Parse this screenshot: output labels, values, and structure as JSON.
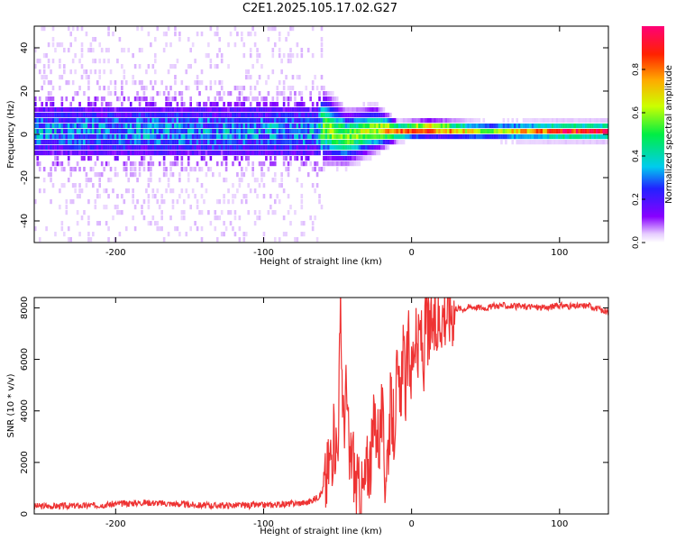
{
  "figure_title": "C2E1.2025.105.17.02.G27",
  "chart_data": [
    {
      "type": "heatmap",
      "title": "C2E1.2025.105.17.02.G27",
      "xlabel": "Height of straight line (km)",
      "ylabel": "Frequency (Hz)",
      "xlim": [
        -255,
        133
      ],
      "ylim": [
        -50,
        50
      ],
      "xticks": [
        -200,
        -100,
        0,
        100
      ],
      "yticks": [
        -40,
        -20,
        0,
        20,
        40
      ],
      "grid": false,
      "colorbar": {
        "label": "Normalized spectral amplitude",
        "range": [
          0.0,
          1.0
        ],
        "ticks": [
          0.0,
          0.2,
          0.4,
          0.6,
          0.8
        ],
        "colormap": "rainbow (violet to red)"
      },
      "description_points": [
        {
          "x": -255,
          "center_freq": 0,
          "spread_hz": 50,
          "peak_amp": 0.3
        },
        {
          "x": -65,
          "center_freq": 0,
          "spread_hz": 50,
          "peak_amp": 0.3
        },
        {
          "x": -60,
          "center_freq": 2,
          "spread_hz": 8,
          "peak_amp": 0.6
        },
        {
          "x": -45,
          "center_freq": -3,
          "spread_hz": 6,
          "peak_amp": 0.6
        },
        {
          "x": -25,
          "center_freq": 1,
          "spread_hz": 5,
          "peak_amp": 0.65
        },
        {
          "x": -10,
          "center_freq": 0,
          "spread_hz": 2,
          "peak_amp": 0.9
        },
        {
          "x": 10,
          "center_freq": 1,
          "spread_hz": 2,
          "peak_amp": 0.95
        },
        {
          "x": 50,
          "center_freq": 0,
          "spread_hz": 2,
          "peak_amp": 0.6
        },
        {
          "x": 100,
          "center_freq": 0,
          "spread_hz": 2,
          "peak_amp": 0.95
        },
        {
          "x": 133,
          "center_freq": 0,
          "spread_hz": 2,
          "peak_amp": 0.95
        }
      ]
    },
    {
      "type": "line",
      "title": "",
      "xlabel": "Height of straight line (km)",
      "ylabel": "SNR (10 * v/v)",
      "xlim": [
        -255,
        133
      ],
      "ylim": [
        0,
        8400
      ],
      "xticks": [
        -200,
        -100,
        0,
        100
      ],
      "yticks": [
        0,
        2000,
        4000,
        6000,
        8000
      ],
      "grid": false,
      "series": [
        {
          "color": "#ee3333",
          "x": [
            -255,
            -220,
            -180,
            -140,
            -100,
            -80,
            -70,
            -62,
            -58,
            -55,
            -52,
            -50,
            -48,
            -46,
            -44,
            -42,
            -40,
            -38,
            -35,
            -32,
            -30,
            -27,
            -25,
            -22,
            -20,
            -18,
            -16,
            -14,
            -12,
            -10,
            -8,
            -6,
            -4,
            -2,
            0,
            2,
            4,
            6,
            8,
            10,
            12,
            14,
            16,
            18,
            20,
            25,
            30,
            35,
            40,
            50,
            60,
            70,
            80,
            90,
            100,
            110,
            120,
            133
          ],
          "y": [
            300,
            320,
            450,
            330,
            340,
            400,
            450,
            700,
            1200,
            2200,
            3000,
            2500,
            7600,
            3500,
            4800,
            1800,
            2600,
            1200,
            700,
            900,
            1800,
            2200,
            3800,
            2800,
            3900,
            1500,
            2600,
            4300,
            3200,
            5200,
            4200,
            6400,
            4800,
            6600,
            5400,
            7000,
            6000,
            7200,
            5800,
            7700,
            6700,
            7400,
            7000,
            7500,
            7800,
            7900,
            8000,
            7950,
            8050,
            8000,
            8100,
            8050,
            8050,
            8000,
            8100,
            8050,
            8100,
            7800
          ]
        }
      ]
    }
  ]
}
